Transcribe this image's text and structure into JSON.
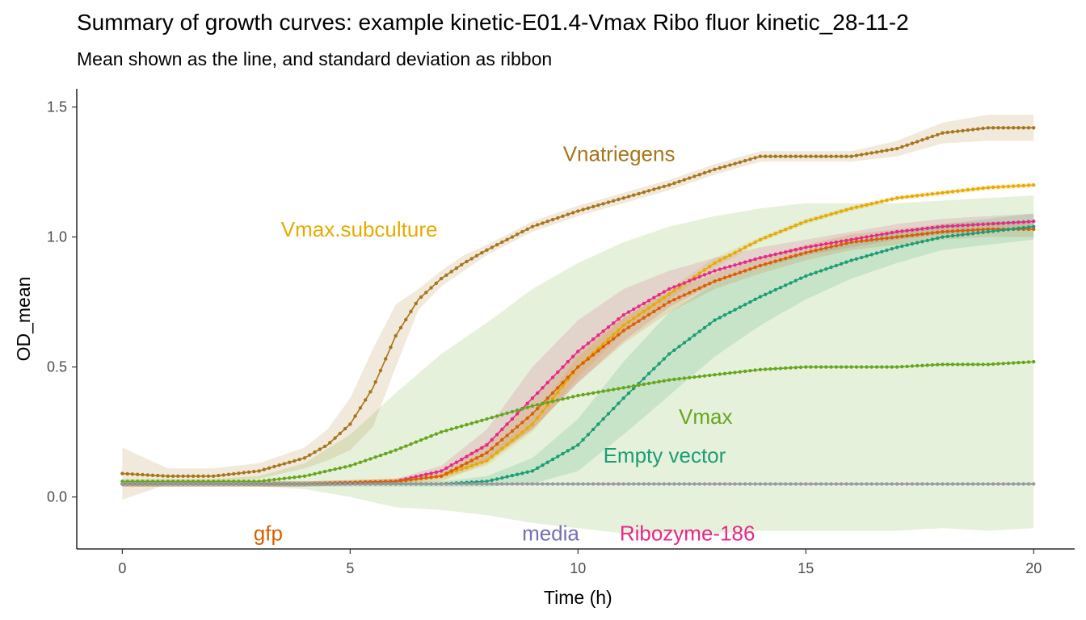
{
  "chart_data": {
    "type": "line",
    "title": "Summary of growth curves: example kinetic-E01.4-Vmax Ribo fluor kinetic_28-11-2",
    "subtitle": "Mean shown as the line, and standard deviation as ribbon",
    "xlabel": "Time (h)",
    "ylabel": "OD_mean",
    "xlim": [
      -1,
      20.9
    ],
    "ylim": [
      -0.2,
      1.57
    ],
    "x_ticks": [
      0,
      5,
      10,
      15,
      20
    ],
    "y_ticks": [
      0.0,
      0.5,
      1.0,
      1.5
    ],
    "x_tick_labels": [
      "0",
      "5",
      "10",
      "15",
      "20"
    ],
    "y_tick_labels": [
      "0.0",
      "0.5",
      "1.0",
      "1.5"
    ],
    "grid": false,
    "legend": "none (direct labels)",
    "series": [
      {
        "name": "Vnatriegens",
        "color": "#A6761D",
        "label_at": [
          10.9,
          1.32
        ],
        "points": [
          [
            0,
            0.09
          ],
          [
            1,
            0.08
          ],
          [
            2,
            0.08
          ],
          [
            3,
            0.1
          ],
          [
            4,
            0.15
          ],
          [
            4.5,
            0.2
          ],
          [
            5,
            0.28
          ],
          [
            5.5,
            0.42
          ],
          [
            6,
            0.62
          ],
          [
            6.5,
            0.76
          ],
          [
            7,
            0.84
          ],
          [
            7.5,
            0.9
          ],
          [
            8,
            0.95
          ],
          [
            9,
            1.04
          ],
          [
            10,
            1.1
          ],
          [
            11,
            1.15
          ],
          [
            12,
            1.2
          ],
          [
            13,
            1.26
          ],
          [
            14,
            1.31
          ],
          [
            15,
            1.31
          ],
          [
            16,
            1.31
          ],
          [
            17,
            1.34
          ],
          [
            18,
            1.4
          ],
          [
            19,
            1.42
          ],
          [
            20,
            1.42
          ]
        ],
        "sd": [
          0.1,
          0.03,
          0.03,
          0.03,
          0.04,
          0.06,
          0.1,
          0.15,
          0.12,
          0.04,
          0.03,
          0.03,
          0.02,
          0.02,
          0.02,
          0.02,
          0.02,
          0.02,
          0.02,
          0.02,
          0.02,
          0.03,
          0.04,
          0.05,
          0.05
        ]
      },
      {
        "name": "Vmax.subculture",
        "color": "#E6AB02",
        "label_at": [
          5.2,
          1.03
        ],
        "points": [
          [
            0,
            0.05
          ],
          [
            2,
            0.05
          ],
          [
            4,
            0.05
          ],
          [
            6,
            0.06
          ],
          [
            7,
            0.08
          ],
          [
            8,
            0.14
          ],
          [
            9,
            0.28
          ],
          [
            10,
            0.5
          ],
          [
            11,
            0.66
          ],
          [
            12,
            0.78
          ],
          [
            13,
            0.9
          ],
          [
            14,
            0.99
          ],
          [
            15,
            1.06
          ],
          [
            16,
            1.11
          ],
          [
            17,
            1.15
          ],
          [
            18,
            1.17
          ],
          [
            19,
            1.19
          ],
          [
            20,
            1.2
          ]
        ],
        "sd": [
          0.01,
          0.01,
          0.01,
          0.01,
          0.01,
          0.02,
          0.03,
          0.04,
          0.03,
          0.02,
          0.02,
          0.01,
          0.01,
          0.01,
          0.01,
          0.01,
          0.01,
          0.01
        ]
      },
      {
        "name": "Ribozyme-186",
        "color": "#E7298A",
        "label_at": [
          12.4,
          -0.14
        ],
        "points": [
          [
            0,
            0.05
          ],
          [
            2,
            0.05
          ],
          [
            4,
            0.05
          ],
          [
            6,
            0.06
          ],
          [
            7,
            0.1
          ],
          [
            8,
            0.2
          ],
          [
            9,
            0.38
          ],
          [
            10,
            0.56
          ],
          [
            11,
            0.7
          ],
          [
            12,
            0.8
          ],
          [
            13,
            0.87
          ],
          [
            14,
            0.92
          ],
          [
            15,
            0.96
          ],
          [
            16,
            0.99
          ],
          [
            17,
            1.02
          ],
          [
            18,
            1.04
          ],
          [
            19,
            1.05
          ],
          [
            20,
            1.06
          ]
        ],
        "sd": [
          0.01,
          0.01,
          0.01,
          0.01,
          0.02,
          0.06,
          0.12,
          0.12,
          0.1,
          0.07,
          0.05,
          0.04,
          0.03,
          0.03,
          0.03,
          0.03,
          0.03,
          0.03
        ]
      },
      {
        "name": "gfp",
        "color": "#D95F02",
        "label_at": [
          3.2,
          -0.14
        ],
        "points": [
          [
            0,
            0.05
          ],
          [
            2,
            0.05
          ],
          [
            4,
            0.05
          ],
          [
            6,
            0.06
          ],
          [
            7,
            0.08
          ],
          [
            8,
            0.17
          ],
          [
            9,
            0.32
          ],
          [
            10,
            0.5
          ],
          [
            11,
            0.64
          ],
          [
            12,
            0.75
          ],
          [
            13,
            0.83
          ],
          [
            14,
            0.89
          ],
          [
            15,
            0.94
          ],
          [
            16,
            0.98
          ],
          [
            17,
            1.0
          ],
          [
            18,
            1.02
          ],
          [
            19,
            1.03
          ],
          [
            20,
            1.03
          ]
        ],
        "sd": [
          0.01,
          0.01,
          0.01,
          0.01,
          0.02,
          0.04,
          0.06,
          0.06,
          0.05,
          0.04,
          0.03,
          0.03,
          0.03,
          0.03,
          0.03,
          0.03,
          0.03,
          0.03
        ]
      },
      {
        "name": "Empty vector",
        "color": "#1B9E77",
        "label_at": [
          11.9,
          0.16
        ],
        "points": [
          [
            0,
            0.05
          ],
          [
            2,
            0.05
          ],
          [
            4,
            0.05
          ],
          [
            6,
            0.05
          ],
          [
            7,
            0.05
          ],
          [
            8,
            0.06
          ],
          [
            9,
            0.1
          ],
          [
            10,
            0.2
          ],
          [
            11,
            0.38
          ],
          [
            12,
            0.55
          ],
          [
            13,
            0.68
          ],
          [
            14,
            0.77
          ],
          [
            15,
            0.85
          ],
          [
            16,
            0.91
          ],
          [
            17,
            0.96
          ],
          [
            18,
            1.0
          ],
          [
            19,
            1.02
          ],
          [
            20,
            1.04
          ]
        ],
        "sd": [
          0.01,
          0.01,
          0.01,
          0.01,
          0.01,
          0.02,
          0.05,
          0.1,
          0.14,
          0.16,
          0.14,
          0.11,
          0.09,
          0.07,
          0.06,
          0.05,
          0.05,
          0.05
        ]
      },
      {
        "name": "Vmax",
        "color": "#66A61E",
        "label_at": [
          12.8,
          0.31
        ],
        "points": [
          [
            0,
            0.06
          ],
          [
            1,
            0.06
          ],
          [
            2,
            0.06
          ],
          [
            3,
            0.06
          ],
          [
            4,
            0.08
          ],
          [
            5,
            0.12
          ],
          [
            6,
            0.18
          ],
          [
            7,
            0.25
          ],
          [
            8,
            0.3
          ],
          [
            9,
            0.35
          ],
          [
            10,
            0.39
          ],
          [
            11,
            0.42
          ],
          [
            12,
            0.45
          ],
          [
            13,
            0.47
          ],
          [
            14,
            0.49
          ],
          [
            15,
            0.5
          ],
          [
            16,
            0.5
          ],
          [
            17,
            0.5
          ],
          [
            18,
            0.51
          ],
          [
            19,
            0.51
          ],
          [
            20,
            0.52
          ]
        ],
        "sd": [
          0.01,
          0.01,
          0.01,
          0.02,
          0.05,
          0.12,
          0.22,
          0.3,
          0.37,
          0.45,
          0.51,
          0.56,
          0.59,
          0.61,
          0.62,
          0.63,
          0.63,
          0.63,
          0.63,
          0.64,
          0.64
        ]
      },
      {
        "name": "media",
        "color": "#7570B3",
        "label_at": [
          9.4,
          -0.14
        ],
        "points": [
          [
            0,
            0.05
          ],
          [
            5,
            0.05
          ],
          [
            10,
            0.05
          ],
          [
            15,
            0.05
          ],
          [
            20,
            0.05
          ]
        ],
        "sd": [
          0.003,
          0.003,
          0.003,
          0.003,
          0.003
        ]
      }
    ]
  }
}
